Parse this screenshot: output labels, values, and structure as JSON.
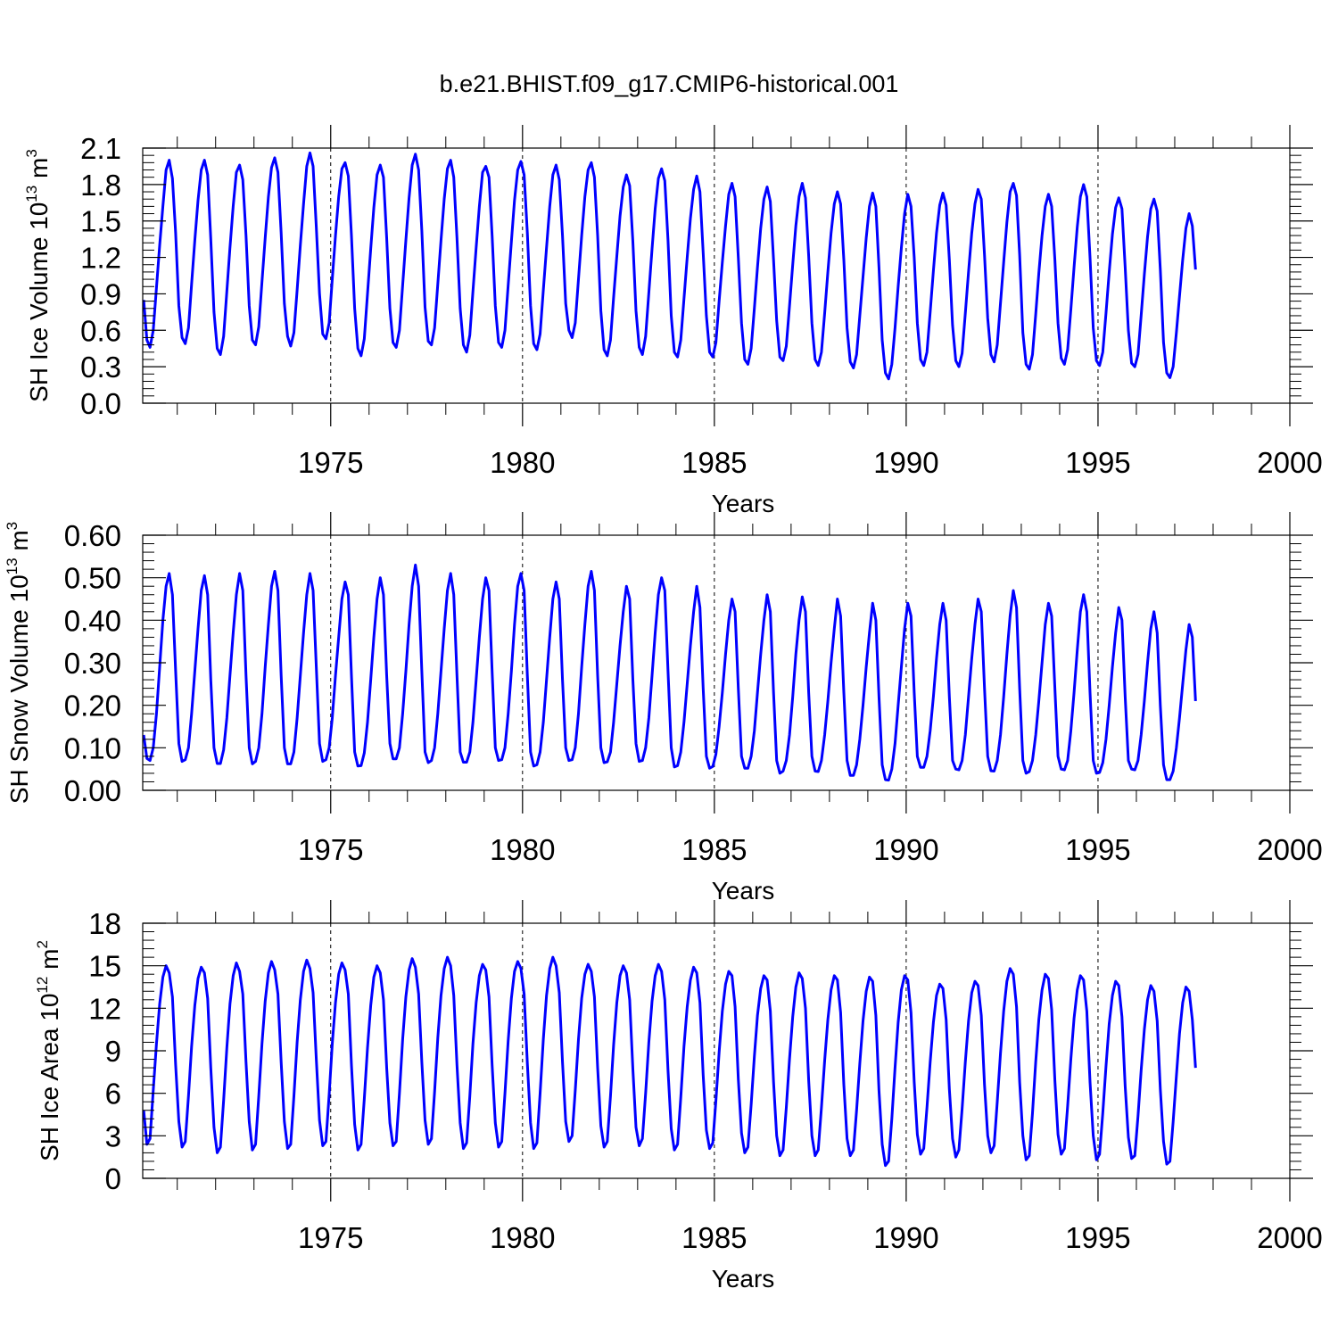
{
  "title": "b.e21.BHIST.f09_g17.CMIP6-historical.001",
  "colors": {
    "line": "#0000ff",
    "axis": "#000000",
    "grid": "#000000",
    "background": "#ffffff"
  },
  "chart_data": [
    {
      "type": "line",
      "ylabel_parts": [
        "SH Ice Volume 10",
        "13",
        " m",
        "3"
      ],
      "xlabel": "Years",
      "xlim": [
        1970.1,
        2000.0
      ],
      "ylim": [
        0.0,
        2.1
      ],
      "x_ticks": [
        "1975",
        "1980",
        "1985",
        "1990",
        "1995",
        "2000"
      ],
      "y_ticks": [
        "0.0",
        "0.3",
        "0.6",
        "0.9",
        "1.2",
        "1.5",
        "1.8",
        "2.1"
      ],
      "grid": "dashed vertical lines at 5-year ticks",
      "start_year": 1970.125,
      "months_per_year": 12,
      "series": [
        {
          "values": [
            0.85,
            0.52,
            0.46,
            0.6,
            0.95,
            1.3,
            1.62,
            1.92,
            2.0,
            1.85,
            1.4,
            0.8,
            0.54,
            0.49,
            0.62,
            0.98,
            1.34,
            1.67,
            1.92,
            2.0,
            1.88,
            1.35,
            0.75,
            0.45,
            0.4,
            0.55,
            0.92,
            1.28,
            1.62,
            1.9,
            1.96,
            1.84,
            1.38,
            0.8,
            0.52,
            0.48,
            0.63,
            1.0,
            1.36,
            1.7,
            1.94,
            2.02,
            1.9,
            1.4,
            0.82,
            0.55,
            0.47,
            0.58,
            0.93,
            1.3,
            1.64,
            1.95,
            2.06,
            1.95,
            1.45,
            0.9,
            0.57,
            0.53,
            0.66,
            1.02,
            1.38,
            1.7,
            1.93,
            1.98,
            1.87,
            1.38,
            0.78,
            0.45,
            0.39,
            0.53,
            0.9,
            1.27,
            1.61,
            1.88,
            1.96,
            1.86,
            1.36,
            0.78,
            0.5,
            0.46,
            0.6,
            0.97,
            1.34,
            1.69,
            1.96,
            2.05,
            1.92,
            1.42,
            0.79,
            0.51,
            0.48,
            0.62,
            0.98,
            1.34,
            1.68,
            1.93,
            2.0,
            1.86,
            1.36,
            0.78,
            0.48,
            0.42,
            0.56,
            0.92,
            1.28,
            1.62,
            1.9,
            1.95,
            1.86,
            1.38,
            0.8,
            0.5,
            0.46,
            0.6,
            0.97,
            1.33,
            1.67,
            1.92,
            1.99,
            1.88,
            1.4,
            0.8,
            0.49,
            0.44,
            0.57,
            0.93,
            1.28,
            1.62,
            1.88,
            1.96,
            1.84,
            1.38,
            0.82,
            0.6,
            0.54,
            0.66,
            1.02,
            1.38,
            1.7,
            1.92,
            1.98,
            1.86,
            1.38,
            0.76,
            0.44,
            0.39,
            0.52,
            0.87,
            1.21,
            1.54,
            1.78,
            1.88,
            1.79,
            1.33,
            0.76,
            0.46,
            0.4,
            0.55,
            0.91,
            1.27,
            1.6,
            1.85,
            1.93,
            1.83,
            1.34,
            0.72,
            0.42,
            0.38,
            0.52,
            0.86,
            1.2,
            1.52,
            1.76,
            1.87,
            1.74,
            1.24,
            0.72,
            0.42,
            0.38,
            0.5,
            0.84,
            1.16,
            1.46,
            1.72,
            1.81,
            1.7,
            1.2,
            0.66,
            0.36,
            0.32,
            0.45,
            0.78,
            1.12,
            1.44,
            1.68,
            1.78,
            1.66,
            1.18,
            0.68,
            0.38,
            0.35,
            0.47,
            0.8,
            1.14,
            1.46,
            1.7,
            1.81,
            1.69,
            1.21,
            0.66,
            0.36,
            0.31,
            0.42,
            0.74,
            1.08,
            1.4,
            1.64,
            1.74,
            1.64,
            1.18,
            0.62,
            0.34,
            0.29,
            0.4,
            0.72,
            1.04,
            1.36,
            1.62,
            1.73,
            1.62,
            1.12,
            0.52,
            0.25,
            0.2,
            0.32,
            0.62,
            0.96,
            1.28,
            1.56,
            1.72,
            1.62,
            1.2,
            0.66,
            0.36,
            0.31,
            0.42,
            0.75,
            1.09,
            1.4,
            1.63,
            1.73,
            1.63,
            1.18,
            0.64,
            0.35,
            0.3,
            0.41,
            0.74,
            1.08,
            1.4,
            1.64,
            1.76,
            1.68,
            1.22,
            0.7,
            0.4,
            0.34,
            0.48,
            0.82,
            1.16,
            1.49,
            1.74,
            1.81,
            1.71,
            1.22,
            0.58,
            0.32,
            0.28,
            0.4,
            0.73,
            1.07,
            1.38,
            1.62,
            1.72,
            1.62,
            1.18,
            0.66,
            0.37,
            0.32,
            0.44,
            0.77,
            1.12,
            1.45,
            1.7,
            1.8,
            1.7,
            1.2,
            0.62,
            0.35,
            0.31,
            0.42,
            0.74,
            1.08,
            1.39,
            1.61,
            1.69,
            1.6,
            1.12,
            0.6,
            0.33,
            0.3,
            0.4,
            0.72,
            1.06,
            1.37,
            1.6,
            1.68,
            1.58,
            1.1,
            0.5,
            0.25,
            0.21,
            0.3,
            0.58,
            0.88,
            1.18,
            1.44,
            1.56,
            1.46,
            1.1
          ]
        }
      ]
    },
    {
      "type": "line",
      "ylabel_parts": [
        "SH Snow Volume 10",
        "13",
        " m",
        "3"
      ],
      "xlabel": "Years",
      "xlim": [
        1970.1,
        2000.0
      ],
      "ylim": [
        0.0,
        0.6
      ],
      "x_ticks": [
        "1975",
        "1980",
        "1985",
        "1990",
        "1995",
        "2000"
      ],
      "y_ticks": [
        "0.00",
        "0.10",
        "0.20",
        "0.30",
        "0.40",
        "0.50",
        "0.60"
      ],
      "grid": "dashed vertical lines at 5-year ticks",
      "start_year": 1970.125,
      "months_per_year": 12,
      "series": [
        {
          "values": [
            0.13,
            0.075,
            0.07,
            0.1,
            0.18,
            0.29,
            0.4,
            0.48,
            0.51,
            0.46,
            0.28,
            0.11,
            0.068,
            0.072,
            0.1,
            0.18,
            0.28,
            0.38,
            0.47,
            0.505,
            0.46,
            0.26,
            0.1,
            0.063,
            0.063,
            0.095,
            0.17,
            0.27,
            0.37,
            0.46,
            0.51,
            0.47,
            0.27,
            0.1,
            0.062,
            0.068,
            0.1,
            0.18,
            0.29,
            0.39,
            0.48,
            0.515,
            0.47,
            0.27,
            0.1,
            0.062,
            0.062,
            0.09,
            0.17,
            0.27,
            0.37,
            0.46,
            0.51,
            0.47,
            0.29,
            0.11,
            0.068,
            0.072,
            0.1,
            0.17,
            0.27,
            0.36,
            0.45,
            0.49,
            0.46,
            0.27,
            0.09,
            0.057,
            0.058,
            0.088,
            0.16,
            0.26,
            0.36,
            0.45,
            0.5,
            0.46,
            0.27,
            0.11,
            0.074,
            0.074,
            0.1,
            0.18,
            0.28,
            0.39,
            0.48,
            0.53,
            0.48,
            0.28,
            0.09,
            0.065,
            0.07,
            0.1,
            0.18,
            0.28,
            0.38,
            0.47,
            0.51,
            0.46,
            0.27,
            0.09,
            0.066,
            0.066,
            0.09,
            0.16,
            0.26,
            0.36,
            0.45,
            0.5,
            0.47,
            0.28,
            0.1,
            0.07,
            0.072,
            0.1,
            0.18,
            0.28,
            0.39,
            0.48,
            0.51,
            0.47,
            0.27,
            0.09,
            0.057,
            0.06,
            0.09,
            0.16,
            0.26,
            0.36,
            0.45,
            0.49,
            0.45,
            0.26,
            0.1,
            0.07,
            0.072,
            0.1,
            0.18,
            0.29,
            0.39,
            0.48,
            0.515,
            0.47,
            0.27,
            0.1,
            0.065,
            0.067,
            0.09,
            0.16,
            0.25,
            0.34,
            0.42,
            0.48,
            0.45,
            0.26,
            0.11,
            0.068,
            0.07,
            0.1,
            0.17,
            0.27,
            0.37,
            0.46,
            0.5,
            0.47,
            0.28,
            0.1,
            0.055,
            0.058,
            0.09,
            0.16,
            0.25,
            0.34,
            0.42,
            0.48,
            0.43,
            0.24,
            0.08,
            0.052,
            0.056,
            0.085,
            0.15,
            0.23,
            0.32,
            0.4,
            0.45,
            0.42,
            0.24,
            0.08,
            0.052,
            0.052,
            0.08,
            0.14,
            0.23,
            0.32,
            0.4,
            0.46,
            0.42,
            0.23,
            0.07,
            0.04,
            0.045,
            0.07,
            0.13,
            0.22,
            0.32,
            0.4,
            0.455,
            0.42,
            0.23,
            0.08,
            0.045,
            0.044,
            0.07,
            0.13,
            0.21,
            0.3,
            0.38,
            0.45,
            0.41,
            0.23,
            0.07,
            0.035,
            0.035,
            0.06,
            0.12,
            0.2,
            0.29,
            0.37,
            0.44,
            0.4,
            0.22,
            0.06,
            0.025,
            0.024,
            0.05,
            0.11,
            0.2,
            0.29,
            0.38,
            0.44,
            0.41,
            0.23,
            0.08,
            0.054,
            0.054,
            0.08,
            0.14,
            0.22,
            0.31,
            0.39,
            0.44,
            0.4,
            0.22,
            0.07,
            0.05,
            0.048,
            0.07,
            0.13,
            0.22,
            0.31,
            0.39,
            0.45,
            0.42,
            0.24,
            0.08,
            0.046,
            0.045,
            0.07,
            0.13,
            0.22,
            0.32,
            0.41,
            0.47,
            0.43,
            0.24,
            0.07,
            0.04,
            0.044,
            0.07,
            0.13,
            0.21,
            0.3,
            0.39,
            0.44,
            0.41,
            0.24,
            0.08,
            0.05,
            0.048,
            0.07,
            0.14,
            0.23,
            0.33,
            0.42,
            0.46,
            0.42,
            0.23,
            0.07,
            0.04,
            0.042,
            0.065,
            0.12,
            0.2,
            0.29,
            0.37,
            0.43,
            0.4,
            0.22,
            0.07,
            0.05,
            0.048,
            0.07,
            0.13,
            0.21,
            0.3,
            0.38,
            0.42,
            0.37,
            0.2,
            0.06,
            0.025,
            0.025,
            0.045,
            0.1,
            0.17,
            0.25,
            0.33,
            0.39,
            0.36,
            0.21
          ]
        }
      ]
    },
    {
      "type": "line",
      "ylabel_parts": [
        "SH Ice Area 10",
        "12",
        " m",
        "2"
      ],
      "xlabel": "Years",
      "xlim": [
        1970.1,
        2000.0
      ],
      "ylim": [
        0,
        18
      ],
      "x_ticks": [
        "1975",
        "1980",
        "1985",
        "1990",
        "1995",
        "2000"
      ],
      "y_ticks": [
        "0",
        "3",
        "6",
        "9",
        "12",
        "15",
        "18"
      ],
      "grid": "dashed vertical lines at 5-year ticks",
      "start_year": 1970.125,
      "months_per_year": 12,
      "series": [
        {
          "values": [
            4.8,
            2.4,
            2.8,
            6.2,
            9.5,
            12.3,
            14.2,
            15.0,
            14.5,
            12.8,
            8.0,
            4.0,
            2.2,
            2.6,
            5.8,
            9.3,
            12.2,
            14.1,
            14.9,
            14.5,
            12.7,
            7.8,
            3.6,
            1.8,
            2.2,
            5.5,
            9.2,
            12.3,
            14.3,
            15.2,
            14.6,
            13.0,
            8.2,
            4.0,
            2.0,
            2.4,
            5.8,
            9.5,
            12.5,
            14.5,
            15.3,
            14.7,
            13.0,
            8.2,
            4.0,
            2.1,
            2.4,
            5.8,
            9.6,
            12.6,
            14.6,
            15.4,
            14.8,
            13.1,
            8.4,
            4.1,
            2.3,
            2.6,
            5.9,
            9.5,
            12.4,
            14.4,
            15.2,
            14.7,
            13.0,
            8.0,
            3.8,
            2.0,
            2.4,
            5.6,
            9.2,
            12.2,
            14.2,
            15.0,
            14.5,
            12.6,
            7.8,
            3.9,
            2.3,
            2.6,
            6.0,
            9.8,
            12.8,
            14.7,
            15.5,
            14.9,
            13.0,
            8.2,
            4.1,
            2.4,
            2.8,
            6.1,
            9.9,
            12.9,
            14.8,
            15.6,
            15.0,
            12.9,
            8.0,
            3.9,
            2.1,
            2.5,
            5.8,
            9.5,
            12.4,
            14.3,
            15.1,
            14.7,
            12.8,
            8.0,
            3.9,
            2.2,
            2.6,
            6.0,
            9.7,
            12.7,
            14.6,
            15.3,
            14.8,
            13.0,
            8.1,
            3.9,
            2.1,
            2.5,
            6.0,
            9.8,
            12.9,
            14.8,
            15.6,
            15.0,
            13.1,
            8.2,
            4.0,
            2.6,
            3.0,
            6.2,
            9.8,
            12.7,
            14.4,
            15.1,
            14.6,
            12.8,
            7.8,
            3.7,
            2.2,
            2.6,
            5.8,
            9.4,
            12.4,
            14.3,
            15.0,
            14.5,
            12.6,
            7.7,
            3.6,
            2.3,
            2.8,
            6.0,
            9.6,
            12.5,
            14.3,
            15.1,
            14.6,
            12.6,
            7.6,
            3.5,
            2.0,
            2.4,
            5.7,
            9.3,
            12.1,
            14.0,
            14.9,
            14.5,
            12.4,
            7.3,
            3.4,
            2.1,
            2.5,
            5.5,
            8.9,
            11.8,
            13.7,
            14.6,
            14.3,
            12.1,
            7.0,
            3.2,
            1.8,
            2.2,
            5.2,
            8.6,
            11.5,
            13.4,
            14.3,
            14.0,
            11.8,
            6.8,
            3.0,
            1.6,
            2.0,
            5.0,
            8.4,
            11.4,
            13.5,
            14.5,
            14.1,
            12.0,
            6.9,
            3.0,
            1.6,
            2.0,
            5.0,
            8.3,
            11.2,
            13.3,
            14.3,
            14.0,
            11.7,
            6.6,
            2.8,
            1.6,
            2.0,
            4.8,
            8.1,
            11.1,
            13.2,
            14.2,
            13.9,
            11.5,
            6.2,
            2.4,
            0.9,
            1.2,
            4.2,
            7.8,
            11.0,
            13.3,
            14.3,
            14.0,
            11.7,
            6.8,
            3.1,
            1.7,
            2.1,
            5.0,
            8.2,
            11.0,
            12.9,
            13.7,
            13.4,
            11.2,
            6.3,
            2.8,
            1.5,
            2.0,
            4.9,
            8.2,
            11.1,
            13.1,
            13.9,
            13.6,
            11.5,
            6.6,
            3.0,
            1.8,
            2.3,
            5.4,
            8.8,
            11.8,
            13.9,
            14.8,
            14.4,
            12.1,
            6.8,
            3.0,
            1.3,
            1.6,
            4.6,
            8.2,
            11.2,
            13.3,
            14.4,
            14.1,
            11.9,
            6.9,
            3.1,
            1.7,
            2.1,
            5.1,
            8.4,
            11.3,
            13.3,
            14.3,
            14.0,
            11.8,
            6.8,
            3.0,
            1.3,
            1.7,
            4.6,
            7.9,
            10.9,
            12.9,
            13.9,
            13.6,
            11.4,
            6.5,
            2.9,
            1.4,
            1.6,
            4.4,
            7.6,
            10.5,
            12.6,
            13.6,
            13.2,
            11.1,
            6.3,
            2.6,
            1.0,
            1.2,
            4.0,
            7.2,
            10.2,
            12.4,
            13.5,
            13.2,
            11.2,
            7.8
          ]
        }
      ]
    }
  ]
}
